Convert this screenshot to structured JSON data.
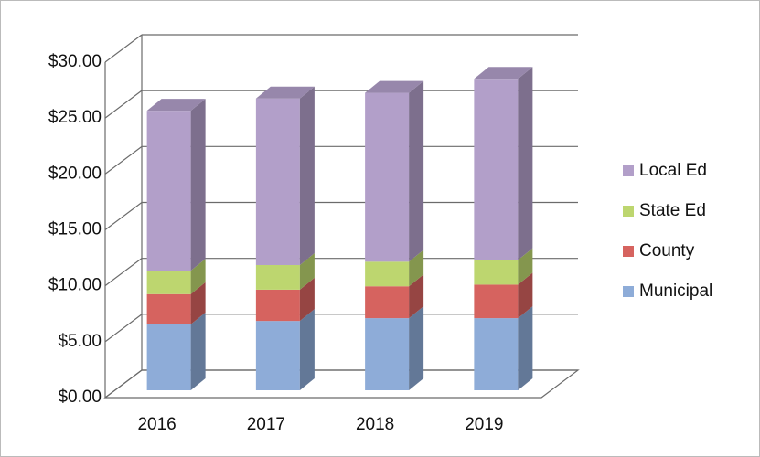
{
  "chart_data": {
    "type": "bar",
    "stacked": true,
    "categories": [
      "2016",
      "2017",
      "2018",
      "2019"
    ],
    "series": [
      {
        "name": "Municipal",
        "color": "#8eacd8",
        "values": [
          5.9,
          6.2,
          6.45,
          6.45
        ]
      },
      {
        "name": "County",
        "color": "#d6635f",
        "values": [
          2.7,
          2.8,
          2.85,
          3.0
        ]
      },
      {
        "name": "State Ed",
        "color": "#bdd66f",
        "values": [
          2.1,
          2.2,
          2.2,
          2.2
        ]
      },
      {
        "name": "Local Ed",
        "color": "#b29fc9",
        "values": [
          14.3,
          14.9,
          15.1,
          16.2
        ]
      }
    ],
    "ylim": [
      0,
      30
    ],
    "yticks": [
      {
        "value": 0,
        "label": "$0.00"
      },
      {
        "value": 5,
        "label": "$5.00"
      },
      {
        "value": 10,
        "label": "$10.00"
      },
      {
        "value": 15,
        "label": "$15.00"
      },
      {
        "value": 20,
        "label": "$20.00"
      },
      {
        "value": 25,
        "label": "$25.00"
      },
      {
        "value": 30,
        "label": "$30.00"
      }
    ],
    "grid": true,
    "legend": "right"
  }
}
